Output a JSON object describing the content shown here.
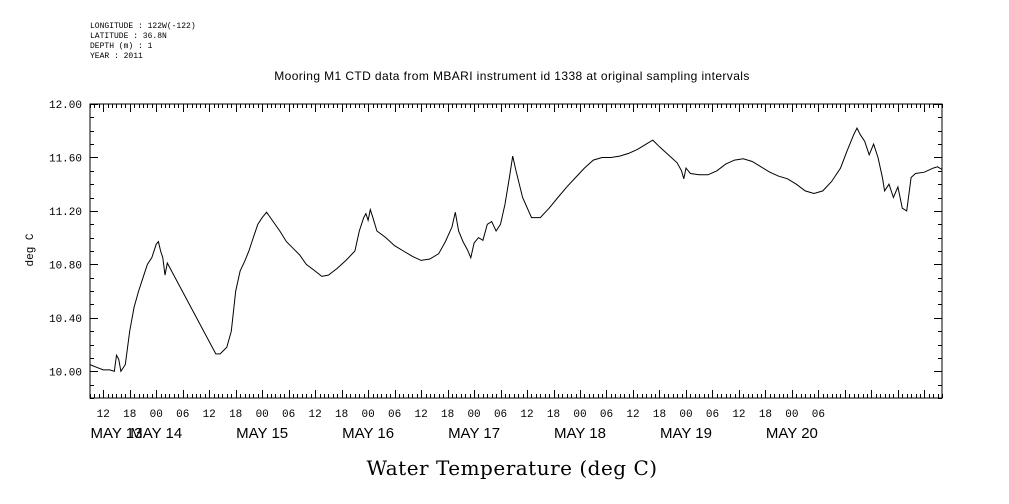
{
  "meta": {
    "longitude": "LONGITUDE : 122W(-122)",
    "latitude": "LATITUDE : 36.8N",
    "depth": "DEPTH (m) : 1",
    "year": "YEAR : 2011"
  },
  "chart_data": {
    "type": "line",
    "title": "Mooring M1 CTD data from MBARI instrument id 1338 at original sampling intervals",
    "xlabel": "Water Temperature (deg C)",
    "ylabel": "deg C",
    "ylim": [
      9.8,
      12.0
    ],
    "y_ticks": [
      "10.00",
      "10.40",
      "10.80",
      "11.20",
      "11.60",
      "12.00"
    ],
    "x_hour_ticks": [
      "12",
      "18",
      "00",
      "06",
      "12",
      "18",
      "00",
      "06",
      "12",
      "18",
      "00",
      "06",
      "12",
      "18",
      "00",
      "06",
      "12",
      "18",
      "00",
      "06",
      "12",
      "18",
      "00",
      "06",
      "12",
      "18",
      "00",
      "06"
    ],
    "x_day_labels": [
      "MAY 13",
      "MAY 14",
      "MAY 15",
      "MAY 16",
      "MAY 17",
      "MAY 18",
      "MAY 19",
      "MAY 20"
    ],
    "grid": false,
    "series": [
      {
        "points": [
          [
            "2011-05-13 09:00",
            10.05
          ],
          [
            "2011-05-13 10:30",
            10.03
          ],
          [
            "2011-05-13 12:00",
            10.01
          ],
          [
            "2011-05-13 13:30",
            10.01
          ],
          [
            "2011-05-13 14:30",
            10.0
          ],
          [
            "2011-05-13 15:00",
            10.12
          ],
          [
            "2011-05-13 15:30",
            10.09
          ],
          [
            "2011-05-13 16:00",
            10.0
          ],
          [
            "2011-05-13 17:00",
            10.05
          ],
          [
            "2011-05-13 18:00",
            10.3
          ],
          [
            "2011-05-13 19:00",
            10.48
          ],
          [
            "2011-05-13 20:00",
            10.6
          ],
          [
            "2011-05-13 21:00",
            10.7
          ],
          [
            "2011-05-13 22:00",
            10.8
          ],
          [
            "2011-05-13 23:00",
            10.85
          ],
          [
            "2011-05-14 00:00",
            10.95
          ],
          [
            "2011-05-14 00:30",
            10.97
          ],
          [
            "2011-05-14 01:00",
            10.9
          ],
          [
            "2011-05-14 01:30",
            10.85
          ],
          [
            "2011-05-14 02:00",
            10.72
          ],
          [
            "2011-05-14 02:30",
            10.81
          ],
          [
            "2011-05-14 13:30",
            10.13
          ],
          [
            "2011-05-14 14:30",
            10.13
          ],
          [
            "2011-05-14 16:00",
            10.18
          ],
          [
            "2011-05-14 17:00",
            10.3
          ],
          [
            "2011-05-14 18:00",
            10.6
          ],
          [
            "2011-05-14 19:00",
            10.75
          ],
          [
            "2011-05-14 20:00",
            10.82
          ],
          [
            "2011-05-14 21:00",
            10.9
          ],
          [
            "2011-05-14 22:00",
            11.0
          ],
          [
            "2011-05-14 23:00",
            11.1
          ],
          [
            "2011-05-15 00:00",
            11.15
          ],
          [
            "2011-05-15 01:00",
            11.19
          ],
          [
            "2011-05-15 02:30",
            11.12
          ],
          [
            "2011-05-15 04:00",
            11.05
          ],
          [
            "2011-05-15 05:30",
            10.97
          ],
          [
            "2011-05-15 07:00",
            10.92
          ],
          [
            "2011-05-15 08:30",
            10.87
          ],
          [
            "2011-05-15 10:00",
            10.8
          ],
          [
            "2011-05-15 12:00",
            10.75
          ],
          [
            "2011-05-15 13:30",
            10.71
          ],
          [
            "2011-05-15 15:00",
            10.72
          ],
          [
            "2011-05-15 17:00",
            10.77
          ],
          [
            "2011-05-15 19:00",
            10.83
          ],
          [
            "2011-05-15 21:00",
            10.9
          ],
          [
            "2011-05-15 22:00",
            11.05
          ],
          [
            "2011-05-15 23:00",
            11.15
          ],
          [
            "2011-05-15 23:30",
            11.18
          ],
          [
            "2011-05-16 00:00",
            11.13
          ],
          [
            "2011-05-16 00:30",
            11.21
          ],
          [
            "2011-05-16 01:00",
            11.16
          ],
          [
            "2011-05-16 02:00",
            11.05
          ],
          [
            "2011-05-16 04:00",
            11.0
          ],
          [
            "2011-05-16 06:00",
            10.94
          ],
          [
            "2011-05-16 08:00",
            10.9
          ],
          [
            "2011-05-16 10:00",
            10.86
          ],
          [
            "2011-05-16 12:00",
            10.83
          ],
          [
            "2011-05-16 14:00",
            10.84
          ],
          [
            "2011-05-16 16:00",
            10.88
          ],
          [
            "2011-05-16 17:30",
            10.97
          ],
          [
            "2011-05-16 19:00",
            11.08
          ],
          [
            "2011-05-16 19:45",
            11.19
          ],
          [
            "2011-05-16 20:30",
            11.05
          ],
          [
            "2011-05-16 21:30",
            10.97
          ],
          [
            "2011-05-16 22:30",
            10.91
          ],
          [
            "2011-05-16 23:15",
            10.85
          ],
          [
            "2011-05-17 00:00",
            10.96
          ],
          [
            "2011-05-17 01:00",
            11.0
          ],
          [
            "2011-05-17 02:00",
            10.98
          ],
          [
            "2011-05-17 03:00",
            11.1
          ],
          [
            "2011-05-17 04:00",
            11.12
          ],
          [
            "2011-05-17 05:00",
            11.05
          ],
          [
            "2011-05-17 06:00",
            11.1
          ],
          [
            "2011-05-17 07:00",
            11.25
          ],
          [
            "2011-05-17 08:00",
            11.45
          ],
          [
            "2011-05-17 08:45",
            11.61
          ],
          [
            "2011-05-17 09:30",
            11.5
          ],
          [
            "2011-05-17 11:00",
            11.3
          ],
          [
            "2011-05-17 13:00",
            11.15
          ],
          [
            "2011-05-17 15:00",
            11.15
          ],
          [
            "2011-05-17 17:00",
            11.22
          ],
          [
            "2011-05-17 19:00",
            11.3
          ],
          [
            "2011-05-17 21:00",
            11.38
          ],
          [
            "2011-05-17 23:00",
            11.45
          ],
          [
            "2011-05-18 01:00",
            11.52
          ],
          [
            "2011-05-18 03:00",
            11.58
          ],
          [
            "2011-05-18 05:00",
            11.6
          ],
          [
            "2011-05-18 07:00",
            11.6
          ],
          [
            "2011-05-18 09:00",
            11.61
          ],
          [
            "2011-05-18 11:00",
            11.63
          ],
          [
            "2011-05-18 13:00",
            11.66
          ],
          [
            "2011-05-18 15:00",
            11.7
          ],
          [
            "2011-05-18 16:30",
            11.73
          ],
          [
            "2011-05-18 18:00",
            11.68
          ],
          [
            "2011-05-18 20:00",
            11.62
          ],
          [
            "2011-05-18 22:00",
            11.56
          ],
          [
            "2011-05-18 23:00",
            11.5
          ],
          [
            "2011-05-18 23:30",
            11.44
          ],
          [
            "2011-05-19 00:00",
            11.52
          ],
          [
            "2011-05-19 01:00",
            11.48
          ],
          [
            "2011-05-19 03:00",
            11.47
          ],
          [
            "2011-05-19 05:00",
            11.47
          ],
          [
            "2011-05-19 07:00",
            11.5
          ],
          [
            "2011-05-19 09:00",
            11.55
          ],
          [
            "2011-05-19 11:00",
            11.58
          ],
          [
            "2011-05-19 13:00",
            11.59
          ],
          [
            "2011-05-19 15:00",
            11.57
          ],
          [
            "2011-05-19 17:00",
            11.53
          ],
          [
            "2011-05-19 19:00",
            11.49
          ],
          [
            "2011-05-19 21:00",
            11.46
          ],
          [
            "2011-05-19 23:00",
            11.44
          ],
          [
            "2011-05-20 01:00",
            11.4
          ],
          [
            "2011-05-20 03:00",
            11.35
          ],
          [
            "2011-05-20 05:00",
            11.33
          ],
          [
            "2011-05-20 07:00",
            11.35
          ],
          [
            "2011-05-20 09:00",
            11.42
          ],
          [
            "2011-05-20 11:00",
            11.52
          ],
          [
            "2011-05-20 12:30",
            11.65
          ],
          [
            "2011-05-20 14:00",
            11.77
          ],
          [
            "2011-05-20 14:45",
            11.82
          ],
          [
            "2011-05-20 15:30",
            11.77
          ],
          [
            "2011-05-20 16:30",
            11.72
          ],
          [
            "2011-05-20 17:30",
            11.62
          ],
          [
            "2011-05-20 18:30",
            11.7
          ],
          [
            "2011-05-20 19:30",
            11.6
          ],
          [
            "2011-05-20 20:30",
            11.45
          ],
          [
            "2011-05-20 21:00",
            11.35
          ],
          [
            "2011-05-20 22:00",
            11.4
          ],
          [
            "2011-05-20 23:00",
            11.3
          ],
          [
            "2011-05-21 00:00",
            11.38
          ],
          [
            "2011-05-21 01:00",
            11.22
          ],
          [
            "2011-05-21 02:00",
            11.2
          ],
          [
            "2011-05-21 03:00",
            11.45
          ],
          [
            "2011-05-21 04:00",
            11.48
          ],
          [
            "2011-05-21 06:00",
            11.49
          ],
          [
            "2011-05-21 08:00",
            11.52
          ],
          [
            "2011-05-21 09:00",
            11.53
          ],
          [
            "2011-05-21 10:00",
            11.51
          ]
        ]
      }
    ]
  }
}
